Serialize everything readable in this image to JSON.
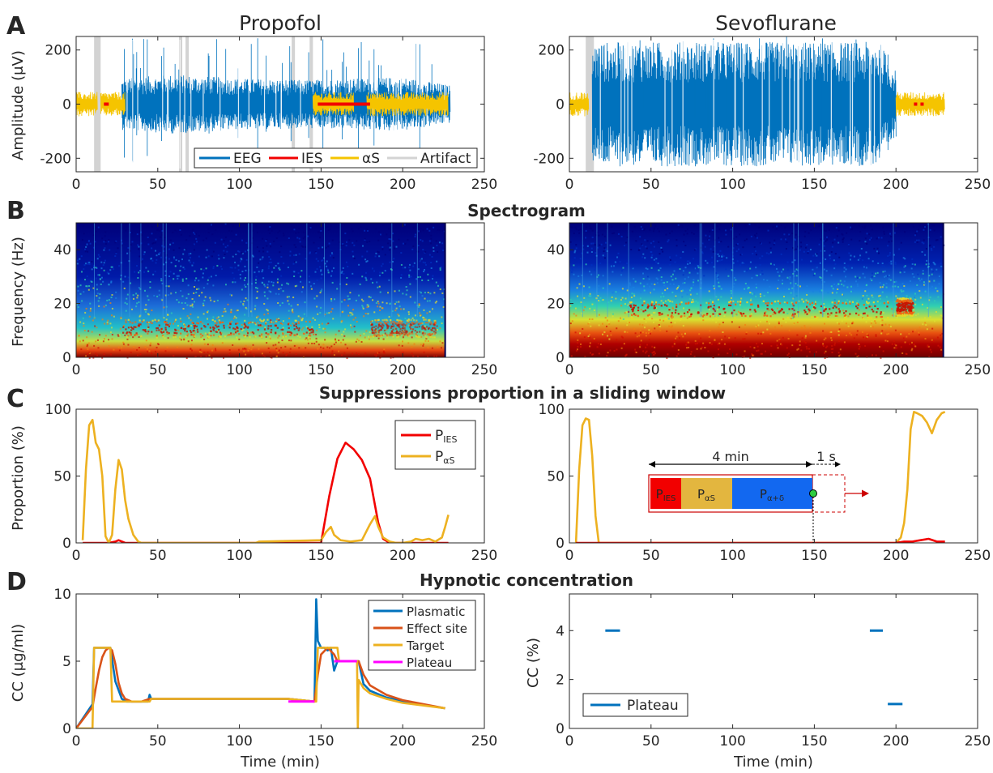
{
  "figure": {
    "columns": [
      "Propofol",
      "Sevoflurane"
    ],
    "panel_letters": [
      "A",
      "B",
      "C",
      "D"
    ],
    "row_titles": [
      "Spectrogram",
      "Suppressions proportion in a sliding window",
      "Hypnotic concentration"
    ]
  },
  "colors": {
    "EEG": "#0072BD",
    "IES": "#F20000",
    "aS": "#F5C400",
    "Artifact": "#D3D3D3",
    "P_IES": "#F20000",
    "P_aS": "#EDB120",
    "Plasmatic": "#0072BD",
    "Effect site": "#D95319",
    "Target": "#EDB120",
    "Plateau": "#FF00FF"
  },
  "chart_data": [
    {
      "id": "A-propofol",
      "type": "line",
      "column": "Propofol",
      "ylabel": "Amplitude (μV)",
      "xlim": [
        0,
        250
      ],
      "ylim": [
        -250,
        250
      ],
      "xticks": [
        0,
        50,
        100,
        150,
        200,
        250
      ],
      "yticks": [
        -200,
        0,
        200
      ],
      "legend": {
        "position": "bottom-right",
        "entries": [
          "EEG",
          "IES",
          "αS",
          "Artifact"
        ]
      },
      "series": [
        {
          "name": "EEG",
          "segments": [
            [
              28,
              229
            ]
          ],
          "envelope_uV": [
            [
              28,
              95
            ],
            [
              60,
              110
            ],
            [
              100,
              95
            ],
            [
              140,
              90
            ],
            [
              200,
              100
            ],
            [
              229,
              70
            ]
          ]
        },
        {
          "name": "IES",
          "segments": [
            [
              148,
              180
            ],
            [
              17,
              20
            ]
          ],
          "y": 0
        },
        {
          "name": "αS",
          "segments": [
            [
              0,
              13
            ],
            [
              15,
              30
            ],
            [
              145,
              170
            ],
            [
              178,
              228
            ]
          ]
        },
        {
          "name": "Artifact",
          "segments": [
            [
              11,
              15
            ],
            [
              63,
              65
            ],
            [
              67,
              69
            ],
            [
              132,
              134
            ],
            [
              143,
              145
            ]
          ]
        }
      ]
    },
    {
      "id": "A-sevoflurane",
      "type": "line",
      "column": "Sevoflurane",
      "xlim": [
        0,
        250
      ],
      "ylim": [
        -250,
        250
      ],
      "xticks": [
        0,
        50,
        100,
        150,
        200,
        250
      ],
      "yticks": [
        -200,
        0,
        200
      ],
      "series": [
        {
          "name": "EEG",
          "segments": [
            [
              14,
              200
            ]
          ],
          "envelope_uV": [
            [
              14,
              230
            ],
            [
              100,
              230
            ],
            [
              190,
              230
            ],
            [
              200,
              120
            ]
          ]
        },
        {
          "name": "αS",
          "segments": [
            [
              0,
              12
            ],
            [
              200,
              230
            ]
          ]
        },
        {
          "name": "IES",
          "segments": [
            [
              211,
              213
            ],
            [
              215,
              217
            ]
          ],
          "y": 0
        },
        {
          "name": "Artifact",
          "segments": [
            [
              10,
              15
            ]
          ]
        }
      ]
    },
    {
      "id": "B-propofol",
      "type": "heatmap",
      "column": "Propofol",
      "ylabel": "Frequency (Hz)",
      "xlim": [
        0,
        250
      ],
      "ylim": [
        0,
        50
      ],
      "xticks": [
        0,
        50,
        100,
        150,
        200,
        250
      ],
      "yticks": [
        0,
        20,
        40
      ],
      "data_extent_min": 226,
      "power_bands": [
        {
          "from": 28,
          "to": 145,
          "center_hz": 11,
          "strength": 0.8
        },
        {
          "from": 180,
          "to": 220,
          "center_hz": 11,
          "strength": 0.6
        }
      ]
    },
    {
      "id": "B-sevoflurane",
      "type": "heatmap",
      "column": "Sevoflurane",
      "xlim": [
        0,
        250
      ],
      "ylim": [
        0,
        50
      ],
      "xticks": [
        0,
        50,
        100,
        150,
        200,
        250
      ],
      "yticks": [
        0,
        20,
        40
      ],
      "data_extent_min": 229,
      "power_bands": [
        {
          "from": 35,
          "to": 195,
          "center_hz": 18,
          "strength": 0.9
        },
        {
          "from": 200,
          "to": 210,
          "center_hz": 19,
          "strength": 0.8
        }
      ]
    },
    {
      "id": "C-propofol",
      "type": "line",
      "column": "Propofol",
      "ylabel": "Proportion (%)",
      "xlim": [
        0,
        250
      ],
      "ylim": [
        0,
        100
      ],
      "xticks": [
        0,
        50,
        100,
        150,
        200,
        250
      ],
      "yticks": [
        0,
        50,
        100
      ],
      "legend": {
        "position": "top-right",
        "entries": [
          "P_IES",
          "P_aS"
        ]
      },
      "series": [
        {
          "name": "P_IES",
          "x": [
            4,
            20,
            24,
            26,
            30,
            150,
            155,
            160,
            165,
            170,
            175,
            180,
            185,
            188,
            192,
            228
          ],
          "y": [
            0,
            0,
            1,
            2,
            0,
            0,
            35,
            63,
            75,
            70,
            62,
            48,
            15,
            3,
            0,
            0
          ]
        },
        {
          "name": "P_aS",
          "x": [
            4,
            6,
            8,
            10,
            12,
            14,
            16,
            18,
            20,
            22,
            24,
            26,
            28,
            30,
            32,
            35,
            38,
            40,
            110,
            112,
            150,
            153,
            156,
            158,
            162,
            168,
            175,
            180,
            183,
            185,
            188,
            192,
            196,
            200,
            205,
            208,
            212,
            216,
            220,
            224,
            226,
            228
          ],
          "y": [
            2,
            55,
            88,
            92,
            75,
            70,
            50,
            5,
            0,
            6,
            40,
            62,
            55,
            32,
            18,
            6,
            1,
            0,
            0,
            1,
            2,
            8,
            12,
            6,
            2,
            1,
            2,
            14,
            20,
            12,
            4,
            1,
            0,
            0,
            1,
            3,
            2,
            3,
            1,
            4,
            12,
            21
          ]
        }
      ]
    },
    {
      "id": "C-sevoflurane",
      "type": "line",
      "column": "Sevoflurane",
      "xlim": [
        0,
        250
      ],
      "ylim": [
        0,
        100
      ],
      "xticks": [
        0,
        50,
        100,
        150,
        200,
        250
      ],
      "yticks": [
        0,
        50,
        100
      ],
      "series": [
        {
          "name": "P_aS",
          "x": [
            4,
            6,
            8,
            10,
            12,
            14,
            16,
            18,
            20,
            200,
            203,
            205,
            207,
            209,
            211,
            213,
            216,
            219,
            222,
            225,
            228,
            230
          ],
          "y": [
            0,
            55,
            88,
            93,
            92,
            65,
            20,
            0,
            0,
            0,
            4,
            15,
            40,
            85,
            98,
            97,
            95,
            90,
            82,
            92,
            97,
            98
          ]
        },
        {
          "name": "P_IES",
          "x": [
            4,
            18,
            20,
            200,
            205,
            210,
            215,
            220,
            225,
            230
          ],
          "y": [
            0,
            0,
            0,
            0,
            1,
            1,
            2,
            3,
            1,
            1
          ]
        }
      ],
      "annotation": {
        "window_label": "4 min",
        "step_label": "1 s",
        "labels": [
          "P_IES",
          "P_aS",
          "P_α+δ"
        ],
        "window_start": 50,
        "window_end": 150,
        "next_end": 165
      }
    },
    {
      "id": "D-propofol",
      "type": "line",
      "column": "Propofol",
      "ylabel": "CC (μg/ml)",
      "xlabel": "Time (min)",
      "xlim": [
        0,
        250
      ],
      "ylim": [
        0,
        10
      ],
      "xticks": [
        0,
        50,
        100,
        150,
        200,
        250
      ],
      "yticks": [
        0,
        5,
        10
      ],
      "legend": {
        "position": "top-right",
        "entries": [
          "Plasmatic",
          "Effect site",
          "Target",
          "Plateau"
        ]
      },
      "series": [
        {
          "name": "Plasmatic",
          "x": [
            0,
            10,
            11,
            21,
            24,
            28,
            31,
            34,
            44,
            45,
            46,
            130,
            146,
            147,
            148,
            150,
            152,
            154,
            156,
            158,
            160,
            163,
            173,
            176,
            180,
            190,
            200,
            226
          ],
          "y": [
            0,
            1.8,
            6,
            6,
            3.5,
            2.2,
            2.0,
            2.0,
            2.0,
            2.5,
            2.2,
            2.2,
            2.0,
            9.6,
            6.5,
            6.0,
            6.0,
            5.8,
            6.0,
            4.3,
            5.0,
            5.0,
            5.0,
            3.3,
            2.8,
            2.3,
            2.0,
            1.5
          ]
        },
        {
          "name": "Effect site",
          "x": [
            0,
            10,
            12,
            14,
            16,
            18,
            20,
            22,
            24,
            26,
            28,
            30,
            34,
            40,
            45,
            130,
            146,
            148,
            150,
            154,
            158,
            160,
            173,
            176,
            180,
            190,
            200,
            226
          ],
          "y": [
            0,
            1.6,
            3.0,
            4.3,
            5.3,
            5.8,
            6.0,
            5.8,
            4.8,
            3.4,
            2.6,
            2.2,
            2.0,
            2.0,
            2.2,
            2.2,
            2.0,
            4.0,
            5.5,
            6.0,
            5.5,
            5.0,
            5.0,
            4.0,
            3.2,
            2.5,
            2.1,
            1.5
          ]
        },
        {
          "name": "Target",
          "x": [
            0,
            10,
            11,
            21,
            22,
            45,
            46,
            130,
            146,
            147,
            148,
            160,
            161,
            172,
            172.5,
            173,
            176,
            180,
            190,
            200,
            226
          ],
          "y": [
            0,
            0,
            6,
            6,
            2.0,
            2.0,
            2.2,
            2.2,
            2.0,
            2.0,
            6.0,
            6.0,
            5.0,
            5.0,
            0,
            3.6,
            3.0,
            2.6,
            2.2,
            1.9,
            1.5
          ]
        },
        {
          "name": "Plateau",
          "segments": [
            [
              130,
              146,
              2.0
            ],
            [
              158,
              172,
              5.0
            ]
          ]
        }
      ]
    },
    {
      "id": "D-sevoflurane",
      "type": "line",
      "column": "Sevoflurane",
      "ylabel": "CC (%)",
      "xlabel": "Time (min)",
      "xlim": [
        0,
        250
      ],
      "ylim": [
        0,
        5.5
      ],
      "xticks": [
        0,
        50,
        100,
        150,
        200,
        250
      ],
      "yticks": [
        0,
        2,
        4
      ],
      "legend": {
        "position": "bottom-left",
        "entries": [
          "Plateau"
        ]
      },
      "series": [
        {
          "name": "Plateau",
          "segments": [
            [
              22,
              31,
              4.0
            ],
            [
              184,
              192,
              4.0
            ],
            [
              195,
              204,
              1.0
            ]
          ]
        }
      ]
    }
  ],
  "legends": {
    "A": {
      "EEG": "EEG",
      "IES": "IES",
      "aS": "αS",
      "Artifact": "Artifact"
    },
    "C": {
      "P": "P",
      "IES": "IES",
      "aS": "αS"
    },
    "D_left": {
      "Plasmatic": "Plasmatic",
      "Effect site": "Effect site",
      "Target": "Target",
      "Plateau": "Plateau"
    },
    "D_right": {
      "Plateau": "Plateau"
    }
  },
  "annotation_C": {
    "window": "4 min",
    "step": "1 s",
    "P": "P",
    "IES": "IES",
    "aS": "αS",
    "ad": "α+δ"
  }
}
